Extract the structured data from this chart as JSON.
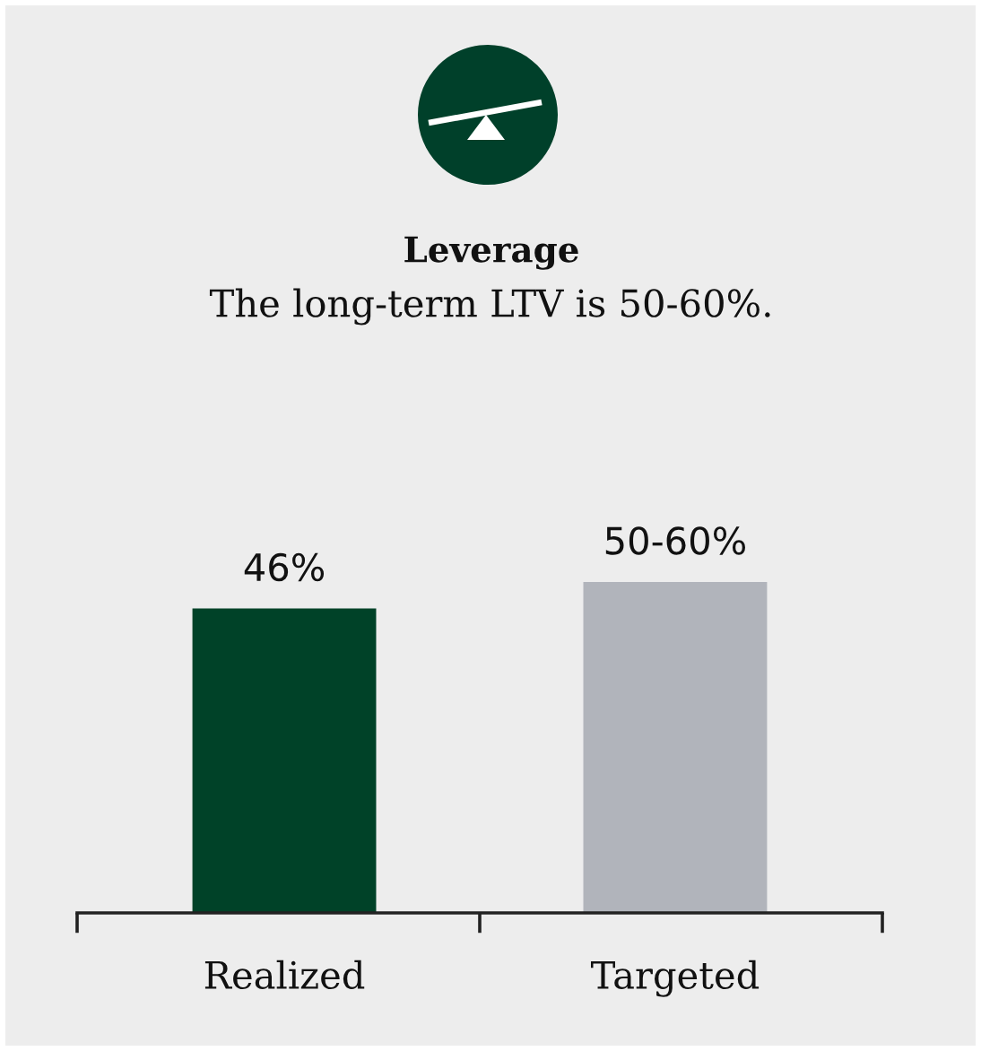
{
  "chart_data": {
    "type": "bar",
    "title": "Leverage",
    "subtitle": "The long-term LTV is 50-60%.",
    "categories": [
      "Realized",
      "Targeted"
    ],
    "values": [
      46,
      50
    ],
    "colors": [
      "#004228",
      "#b1b4bb"
    ],
    "value_labels": [
      "46%",
      "50-60%"
    ]
  }
}
